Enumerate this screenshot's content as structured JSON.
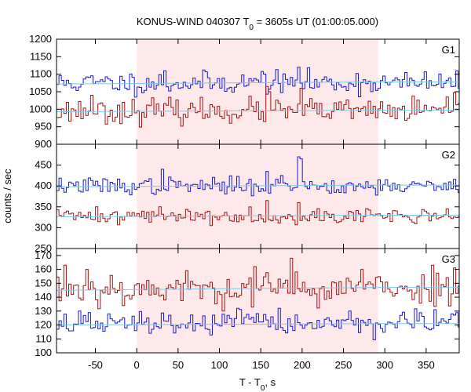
{
  "chart_data": {
    "type": "line",
    "title": "KONUS-WIND 040307 T",
    "title_sub": "0",
    "title_rest": " = 3605s UT (01:00:05.000)",
    "xlabel": "T - T",
    "xlabel_sub": "0",
    "xlabel_rest": ", s",
    "ylabel": "counts / sec",
    "xlim": [
      -97,
      390
    ],
    "x_ticks": [
      -50,
      0,
      50,
      100,
      150,
      200,
      250,
      300,
      350
    ],
    "highlight_interval": [
      0,
      292
    ],
    "bin_width": 2.944,
    "colors": {
      "g1g2_hi": "#1a1acc",
      "g1g2_lo": "#a01414",
      "g3_hi": "#a01414",
      "g3_lo": "#1a1acc",
      "bg_line": "#7fc8e8",
      "highlight": "#fde8ea"
    },
    "panels": [
      {
        "label": "G1",
        "ylim": [
          900,
          1200
        ],
        "y_ticks": [
          900,
          950,
          1000,
          1050,
          1100,
          1150,
          1200
        ],
        "series": [
          {
            "role": "upper",
            "mean": 1075,
            "sigma": 16,
            "seed": 11,
            "spikes": [
              [
                195,
                1145
              ],
              [
                193,
                1120
              ],
              [
                33,
                1110
              ],
              [
                150,
                1108
              ],
              [
                265,
                1102
              ]
            ],
            "background": [
              1072,
              1078
            ]
          },
          {
            "role": "lower",
            "mean": 995,
            "sigma": 17,
            "seed": 23,
            "spikes": [
              [
                155,
                1065
              ],
              [
                160,
                1050
              ],
              [
                197,
                1060
              ],
              [
                -55,
                1040
              ],
              [
                373,
                1035
              ]
            ],
            "background": [
              993,
              997
            ]
          }
        ]
      },
      {
        "label": "G2",
        "ylim": [
          250,
          500
        ],
        "y_ticks": [
          250,
          300,
          350,
          400,
          450
        ],
        "series": [
          {
            "role": "upper",
            "mean": 400,
            "sigma": 10,
            "seed": 37,
            "spikes": [
              [
                193,
                470
              ],
              [
                196,
                465
              ],
              [
                30,
                440
              ],
              [
                155,
                435
              ],
              [
                175,
                425
              ]
            ],
            "background": [
              398,
              402
            ]
          },
          {
            "role": "lower",
            "mean": 328,
            "sigma": 9,
            "seed": 41,
            "spikes": [
              [
                155,
                365
              ],
              [
                193,
                360
              ],
              [
                -50,
                350
              ],
              [
                28,
                350
              ],
              [
                373,
                345
              ]
            ],
            "background": [
              326,
              330
            ]
          }
        ]
      },
      {
        "label": "G3",
        "ylim": [
          100,
          175
        ],
        "y_ticks": [
          100,
          110,
          120,
          130,
          140,
          150,
          160,
          170
        ],
        "series": [
          {
            "role": "upper",
            "mean": 146,
            "sigma": 6,
            "seed": 53,
            "spikes": [
              [
                185,
                168
              ],
              [
                -88,
                163
              ],
              [
                -62,
                160
              ],
              [
                140,
                162
              ],
              [
                355,
                163
              ],
              [
                270,
                160
              ]
            ],
            "background": [
              145,
              147
            ]
          },
          {
            "role": "lower",
            "mean": 121,
            "sigma": 4,
            "seed": 67,
            "spikes": [
              [
                120,
                132
              ],
              [
                170,
                132
              ],
              [
                -70,
                130
              ],
              [
                255,
                130
              ],
              [
                360,
                131
              ]
            ],
            "background": [
              120,
              121
            ]
          }
        ]
      }
    ]
  }
}
